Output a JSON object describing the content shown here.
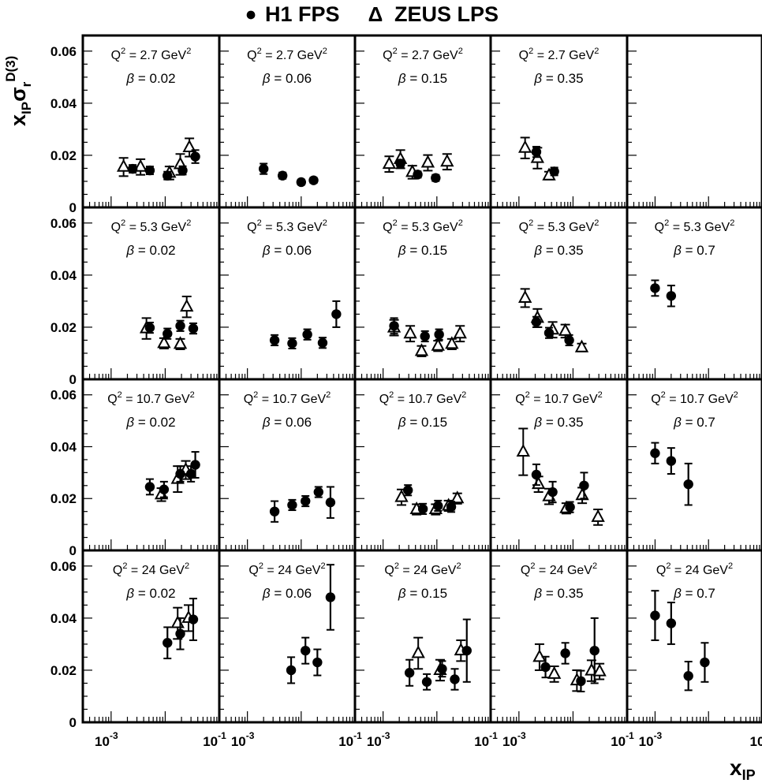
{
  "legend": {
    "h1_marker": "●",
    "h1_label": "H1 FPS",
    "zeus_marker": "Δ",
    "zeus_label": "ZEUS LPS",
    "placement": "top-center"
  },
  "y_axis": {
    "label_main": "x",
    "label_sub_ip": "IP",
    "label_sigma": "σ",
    "label_sub_r": "r",
    "label_sup": "D(3)",
    "ticks": [
      "0",
      "0.02",
      "0.04",
      "0.06"
    ]
  },
  "x_axis": {
    "label_main": "x",
    "label_sub": "IP",
    "ticks_per_panel": [
      "10 -3",
      "10 -1"
    ],
    "last_tick_right": "10"
  },
  "panel_text": {
    "q2_prefix": "Q",
    "q2_sup": "2",
    "q2_unit": "GeV",
    "beta_symbol": "β"
  },
  "chart_data": {
    "type": "scatter",
    "xscale": "log",
    "xlim": [
      0.0003,
      0.1
    ],
    "ylim": [
      0,
      0.066
    ],
    "grid": false,
    "rows_q2": [
      "2.7",
      "5.3",
      "10.7",
      "24"
    ],
    "cols_beta": [
      "0.02",
      "0.06",
      "0.15",
      "0.35",
      "0.7"
    ],
    "series_names": [
      "H1 FPS",
      "ZEUS LPS"
    ],
    "panels": [
      {
        "row": 0,
        "col": 0,
        "q2": "2.7",
        "beta": "0.02",
        "h1": [
          [
            0.0025,
            0.0148,
            0.0015
          ],
          [
            0.0052,
            0.0142,
            0.0015
          ],
          [
            0.011,
            0.0122,
            0.0015
          ],
          [
            0.021,
            0.0142,
            0.0016
          ],
          [
            0.036,
            0.0195,
            0.0025
          ]
        ],
        "zeus": [
          [
            0.0017,
            0.0155,
            0.0035
          ],
          [
            0.0035,
            0.0155,
            0.003
          ],
          [
            0.012,
            0.0132,
            0.0025
          ],
          [
            0.019,
            0.0165,
            0.004
          ],
          [
            0.028,
            0.023,
            0.0035
          ]
        ]
      },
      {
        "row": 0,
        "col": 1,
        "q2": "2.7",
        "beta": "0.06",
        "h1": [
          [
            0.002,
            0.0148,
            0.002
          ],
          [
            0.0045,
            0.0122,
            0.0012
          ],
          [
            0.01,
            0.0097,
            0.001
          ],
          [
            0.017,
            0.0104,
            0.001
          ]
        ],
        "zeus": []
      },
      {
        "row": 0,
        "col": 2,
        "q2": "2.7",
        "beta": "0.15",
        "h1": [
          [
            0.0021,
            0.0168,
            0.0015
          ],
          [
            0.0044,
            0.0126,
            0.0012
          ],
          [
            0.0095,
            0.0113,
            0.0012
          ]
        ],
        "zeus": [
          [
            0.0013,
            0.0166,
            0.003
          ],
          [
            0.0021,
            0.0185,
            0.0035
          ],
          [
            0.0035,
            0.0135,
            0.0025
          ],
          [
            0.0068,
            0.0171,
            0.003
          ],
          [
            0.0155,
            0.0175,
            0.003
          ]
        ]
      },
      {
        "row": 0,
        "col": 3,
        "q2": "2.7",
        "beta": "0.35",
        "h1": [
          [
            0.0021,
            0.0213,
            0.002
          ],
          [
            0.0045,
            0.0138,
            0.0015
          ]
        ],
        "zeus": [
          [
            0.0013,
            0.0228,
            0.004
          ],
          [
            0.0022,
            0.0189,
            0.004
          ],
          [
            0.0036,
            0.0122,
            0.0015
          ]
        ]
      },
      {
        "row": 0,
        "col": 4,
        "q2": "2.7",
        "beta": "0.7",
        "h1": [],
        "zeus": []
      },
      {
        "row": 1,
        "col": 0,
        "q2": "5.3",
        "beta": "0.02",
        "h1": [
          [
            0.0052,
            0.0198,
            0.002
          ],
          [
            0.011,
            0.0175,
            0.002
          ],
          [
            0.019,
            0.0205,
            0.002
          ],
          [
            0.033,
            0.0195,
            0.002
          ]
        ],
        "zeus": [
          [
            0.0045,
            0.0195,
            0.004
          ],
          [
            0.0095,
            0.0138,
            0.002
          ],
          [
            0.019,
            0.0135,
            0.002
          ],
          [
            0.025,
            0.0278,
            0.004
          ]
        ]
      },
      {
        "row": 1,
        "col": 1,
        "q2": "5.3",
        "beta": "0.06",
        "h1": [
          [
            0.0032,
            0.015,
            0.002
          ],
          [
            0.0068,
            0.0138,
            0.002
          ],
          [
            0.013,
            0.0172,
            0.002
          ],
          [
            0.025,
            0.014,
            0.002
          ],
          [
            0.045,
            0.025,
            0.005
          ]
        ],
        "zeus": []
      },
      {
        "row": 1,
        "col": 2,
        "q2": "5.3",
        "beta": "0.15",
        "h1": [
          [
            0.0016,
            0.0205,
            0.003
          ],
          [
            0.006,
            0.0165,
            0.002
          ],
          [
            0.011,
            0.0172,
            0.002
          ]
        ],
        "zeus": [
          [
            0.0016,
            0.0198,
            0.003
          ],
          [
            0.0032,
            0.0175,
            0.003
          ],
          [
            0.0052,
            0.0108,
            0.002
          ],
          [
            0.0105,
            0.0128,
            0.002
          ],
          [
            0.019,
            0.0135,
            0.002
          ],
          [
            0.027,
            0.0175,
            0.003
          ]
        ]
      },
      {
        "row": 1,
        "col": 3,
        "q2": "5.3",
        "beta": "0.35",
        "h1": [
          [
            0.0021,
            0.022,
            0.002
          ],
          [
            0.0036,
            0.0178,
            0.002
          ],
          [
            0.0085,
            0.015,
            0.002
          ]
        ],
        "zeus": [
          [
            0.0013,
            0.0312,
            0.0035
          ],
          [
            0.0022,
            0.0235,
            0.0035
          ],
          [
            0.0042,
            0.019,
            0.003
          ],
          [
            0.0072,
            0.0185,
            0.0025
          ],
          [
            0.0145,
            0.0122,
            0.0015
          ]
        ]
      },
      {
        "row": 1,
        "col": 4,
        "q2": "5.3",
        "beta": "0.7",
        "h1": [
          [
            0.001,
            0.035,
            0.003
          ],
          [
            0.002,
            0.032,
            0.004
          ]
        ],
        "zeus": []
      },
      {
        "row": 2,
        "col": 0,
        "q2": "10.7",
        "beta": "0.02",
        "h1": [
          [
            0.0052,
            0.0245,
            0.003
          ],
          [
            0.0095,
            0.0235,
            0.003
          ],
          [
            0.019,
            0.0295,
            0.003
          ],
          [
            0.03,
            0.0295,
            0.003
          ],
          [
            0.036,
            0.033,
            0.005
          ]
        ],
        "zeus": [
          [
            0.0085,
            0.0215,
            0.0025
          ],
          [
            0.017,
            0.0275,
            0.005
          ],
          [
            0.024,
            0.031,
            0.0035
          ]
        ]
      },
      {
        "row": 2,
        "col": 1,
        "q2": "10.7",
        "beta": "0.06",
        "h1": [
          [
            0.0032,
            0.015,
            0.004
          ],
          [
            0.0068,
            0.0175,
            0.002
          ],
          [
            0.012,
            0.019,
            0.002
          ],
          [
            0.021,
            0.0225,
            0.002
          ],
          [
            0.035,
            0.0185,
            0.006
          ]
        ],
        "zeus": []
      },
      {
        "row": 2,
        "col": 2,
        "q2": "10.7",
        "beta": "0.15",
        "h1": [
          [
            0.0029,
            0.0232,
            0.002
          ],
          [
            0.0055,
            0.016,
            0.002
          ],
          [
            0.0105,
            0.0172,
            0.002
          ],
          [
            0.0185,
            0.0168,
            0.002
          ]
        ],
        "zeus": [
          [
            0.0022,
            0.0205,
            0.003
          ],
          [
            0.0042,
            0.0158,
            0.002
          ],
          [
            0.0095,
            0.0158,
            0.002
          ],
          [
            0.0165,
            0.0172,
            0.002
          ],
          [
            0.024,
            0.02,
            0.002
          ]
        ]
      },
      {
        "row": 2,
        "col": 3,
        "q2": "10.7",
        "beta": "0.35",
        "h1": [
          [
            0.0021,
            0.0292,
            0.004
          ],
          [
            0.0042,
            0.0225,
            0.004
          ],
          [
            0.0088,
            0.0167,
            0.002
          ],
          [
            0.016,
            0.025,
            0.005
          ]
        ],
        "zeus": [
          [
            0.0012,
            0.038,
            0.009
          ],
          [
            0.0023,
            0.0255,
            0.003
          ],
          [
            0.0036,
            0.0208,
            0.003
          ],
          [
            0.0075,
            0.0162,
            0.002
          ],
          [
            0.0148,
            0.0212,
            0.003
          ],
          [
            0.029,
            0.0128,
            0.003
          ]
        ]
      },
      {
        "row": 2,
        "col": 4,
        "q2": "10.7",
        "beta": "0.7",
        "h1": [
          [
            0.001,
            0.0375,
            0.004
          ],
          [
            0.002,
            0.0345,
            0.005
          ],
          [
            0.0042,
            0.0255,
            0.008
          ]
        ],
        "zeus": []
      },
      {
        "row": 3,
        "col": 0,
        "q2": "24",
        "beta": "0.02",
        "h1": [
          [
            0.011,
            0.0305,
            0.006
          ],
          [
            0.019,
            0.034,
            0.006
          ],
          [
            0.033,
            0.0395,
            0.008
          ]
        ],
        "zeus": [
          [
            0.017,
            0.038,
            0.006
          ],
          [
            0.027,
            0.04,
            0.005
          ]
        ]
      },
      {
        "row": 3,
        "col": 1,
        "q2": "24",
        "beta": "0.06",
        "h1": [
          [
            0.0065,
            0.02,
            0.005
          ],
          [
            0.012,
            0.0275,
            0.005
          ],
          [
            0.02,
            0.023,
            0.005
          ],
          [
            0.035,
            0.048,
            0.0125
          ]
        ],
        "zeus": []
      },
      {
        "row": 3,
        "col": 2,
        "q2": "24",
        "beta": "0.15",
        "h1": [
          [
            0.0031,
            0.019,
            0.005
          ],
          [
            0.0065,
            0.0155,
            0.003
          ],
          [
            0.0125,
            0.0205,
            0.003
          ],
          [
            0.0215,
            0.0165,
            0.004
          ],
          [
            0.036,
            0.0275,
            0.012
          ]
        ],
        "zeus": [
          [
            0.0045,
            0.0265,
            0.006
          ],
          [
            0.0115,
            0.02,
            0.004
          ],
          [
            0.028,
            0.0275,
            0.004
          ]
        ]
      },
      {
        "row": 3,
        "col": 3,
        "q2": "24",
        "beta": "0.35",
        "h1": [
          [
            0.0031,
            0.0212,
            0.004
          ],
          [
            0.0072,
            0.0265,
            0.004
          ],
          [
            0.014,
            0.0158,
            0.004
          ],
          [
            0.025,
            0.0275,
            0.0125
          ]
        ],
        "zeus": [
          [
            0.0024,
            0.025,
            0.005
          ],
          [
            0.0045,
            0.0185,
            0.003
          ],
          [
            0.0118,
            0.016,
            0.004
          ],
          [
            0.022,
            0.0198,
            0.004
          ],
          [
            0.031,
            0.0195,
            0.003
          ]
        ]
      },
      {
        "row": 3,
        "col": 4,
        "q2": "24",
        "beta": "0.7",
        "h1": [
          [
            0.001,
            0.041,
            0.0095
          ],
          [
            0.002,
            0.038,
            0.008
          ],
          [
            0.0042,
            0.0178,
            0.0055
          ],
          [
            0.0085,
            0.023,
            0.0075
          ]
        ],
        "zeus": []
      }
    ]
  }
}
